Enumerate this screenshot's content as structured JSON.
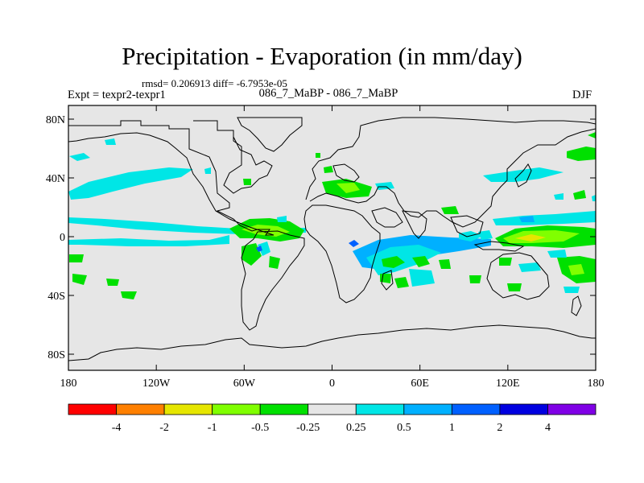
{
  "title": "Precipitation - Evaporation (in mm/day)",
  "stats": {
    "rmsd_label": "rmsd= 0.206913",
    "diff_label": "diff= -6.7953e-05"
  },
  "experiment": "Expt = texpr2-texpr1",
  "period": "086_7_MaBP - 086_7_MaBP",
  "season": "DJF",
  "axes": {
    "lon_ticks": [
      "180",
      "120W",
      "60W",
      "0",
      "60E",
      "120E",
      "180"
    ],
    "lat_ticks": [
      "80N",
      "40N",
      "0",
      "40S",
      "80S"
    ]
  },
  "colorbar": {
    "labels": [
      "-4",
      "-2",
      "-1",
      "-0.5",
      "-0.25",
      "0.25",
      "0.5",
      "1",
      "2",
      "4"
    ],
    "colors": [
      "#ff0000",
      "#ff8000",
      "#e6e600",
      "#80ff00",
      "#00e000",
      "#e6e6e6",
      "#00e6e6",
      "#00b0ff",
      "#0060ff",
      "#0000e0",
      "#8000e6"
    ]
  },
  "map": {
    "background_color": "#e6e6e6",
    "coastline_color": "#000000"
  }
}
